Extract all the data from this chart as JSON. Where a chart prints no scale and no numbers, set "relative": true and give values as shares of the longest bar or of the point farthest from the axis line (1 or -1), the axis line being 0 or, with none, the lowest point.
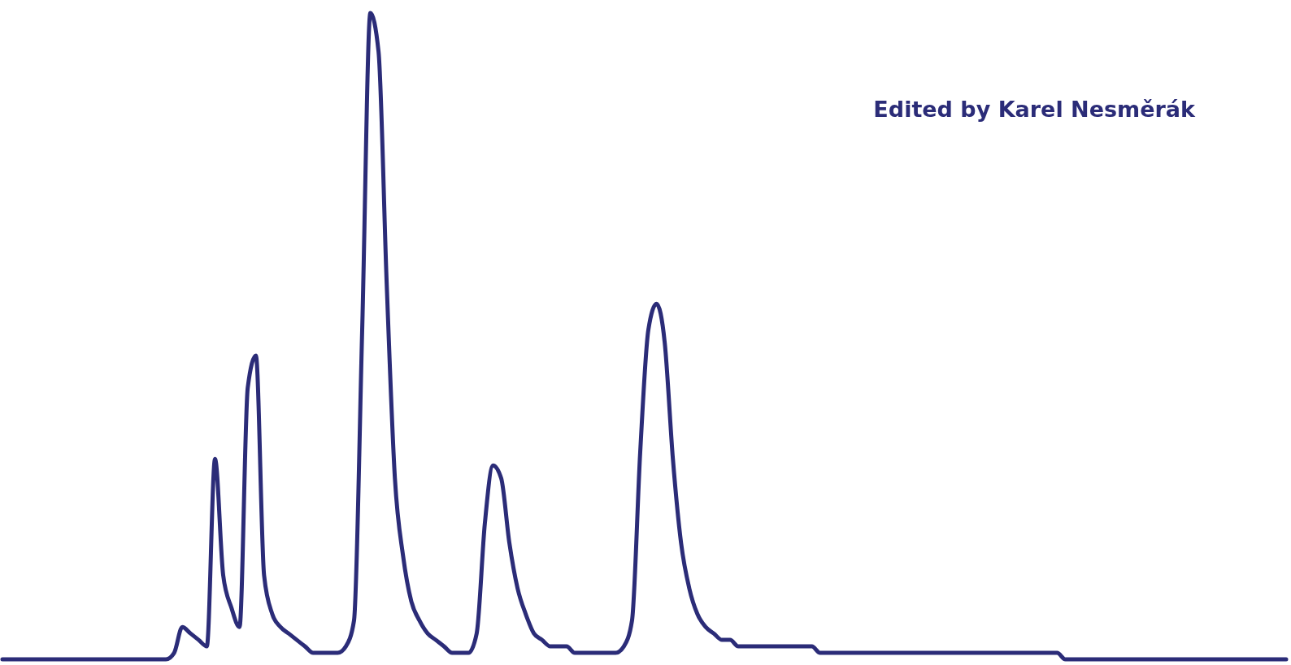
{
  "chart_data": {
    "type": "line",
    "relative": true,
    "annotations": [
      "Edited by Karel Nesměrák"
    ],
    "categories": [
      null,
      null,
      null,
      null,
      null,
      null,
      null,
      null,
      null,
      null,
      null,
      null,
      null,
      null,
      null,
      null,
      null,
      null,
      null,
      null,
      null,
      null,
      null,
      null,
      null,
      null,
      null,
      null,
      null,
      null,
      null,
      null,
      null,
      null,
      null,
      null,
      null,
      null,
      null,
      null,
      null,
      null,
      null,
      null,
      null,
      null,
      null,
      null,
      null,
      null,
      null,
      null,
      null,
      null,
      null,
      null,
      null,
      null,
      null,
      null,
      null,
      null,
      null,
      null,
      null,
      null,
      null,
      null,
      null,
      null,
      null,
      null,
      null,
      null,
      null,
      null,
      null,
      null,
      null,
      null,
      null,
      null,
      null,
      null,
      null,
      null,
      null,
      null,
      null,
      null,
      null,
      null,
      null,
      null,
      null,
      null,
      null,
      null,
      null,
      null,
      null,
      null,
      null,
      null,
      null,
      null,
      null,
      null,
      null,
      null,
      null,
      null,
      null,
      null,
      null,
      null,
      null,
      null,
      null,
      null,
      null,
      null,
      null,
      null,
      null,
      null,
      null,
      null,
      null,
      null,
      null,
      null,
      null,
      null,
      null,
      null,
      null,
      null,
      null,
      null,
      null,
      null,
      null,
      null,
      null,
      null,
      null,
      null,
      null,
      null,
      null,
      null,
      null,
      null,
      null,
      null,
      null,
      null
    ],
    "series": [
      {
        "color": "#2b2c78",
        "values": [
          0,
          0,
          0,
          0,
          0,
          0,
          0,
          0,
          0,
          0,
          0,
          0,
          0,
          0,
          0,
          0,
          0,
          0,
          0,
          0,
          0,
          0.01,
          0.05,
          0.04,
          0.03,
          0.02,
          0.31,
          0.13,
          0.08,
          0.05,
          0.42,
          0.47,
          0.13,
          0.07,
          0.05,
          0.04,
          0.03,
          0.02,
          0.01,
          0.01,
          0.01,
          0.01,
          0.02,
          0.06,
          0.51,
          1,
          0.94,
          0.58,
          0.28,
          0.16,
          0.09,
          0.06,
          0.04,
          0.03,
          0.02,
          0.01,
          0.01,
          0.01,
          0.04,
          0.21,
          0.3,
          0.28,
          0.18,
          0.11,
          0.07,
          0.04,
          0.03,
          0.02,
          0.02,
          0.02,
          0.01,
          0.01,
          0.01,
          0.01,
          0.01,
          0.01,
          0.02,
          0.06,
          0.32,
          0.51,
          0.55,
          0.49,
          0.31,
          0.18,
          0.11,
          0.07,
          0.05,
          0.04,
          0.03,
          0.03,
          0.02,
          0.02,
          0.02,
          0.02,
          0.02,
          0.02,
          0.02,
          0.02,
          0.02,
          0.02,
          0.01,
          0.01,
          0.01,
          0.01,
          0.01,
          0.01,
          0.01,
          0.01,
          0.01,
          0.01,
          0.01,
          0.01,
          0.01,
          0.01,
          0.01,
          0.01,
          0.01,
          0.01,
          0.01,
          0.01,
          0.01,
          0.01,
          0.01,
          0.01,
          0.01,
          0.01,
          0.01,
          0.01,
          0.01,
          0.01,
          0,
          0,
          0,
          0,
          0,
          0,
          0,
          0,
          0,
          0,
          0,
          0,
          0,
          0,
          0,
          0,
          0,
          0,
          0,
          0,
          0,
          0,
          0,
          0,
          0,
          0,
          0,
          0
        ]
      }
    ]
  }
}
